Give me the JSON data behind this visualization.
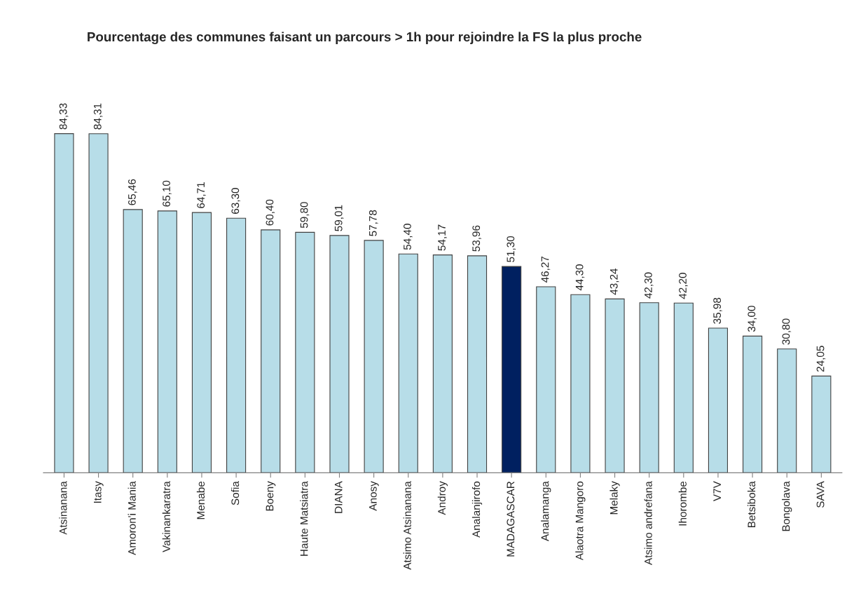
{
  "chart_data": {
    "type": "bar",
    "title": "Pourcentage des communes faisant un parcours > 1h pour rejoindre la FS la plus proche",
    "categories": [
      "Atsinanana",
      "Itasy",
      "Amoron'i Mania",
      "Vakinankaratra",
      "Menabe",
      "Sofia",
      "Boeny",
      "Haute Matsiatra",
      "DIANA",
      "Anosy",
      "Atsimo Atsinanana",
      "Androy",
      "Analanjirofo",
      "MADAGASCAR",
      "Analamanga",
      "Alaotra Mangoro",
      "Melaky",
      "Atsimo andrefana",
      "Ihorombe",
      "V7V",
      "Betsiboka",
      "Bongolava",
      "SAVA"
    ],
    "values": [
      84.33,
      84.31,
      65.46,
      65.1,
      64.71,
      63.3,
      60.4,
      59.8,
      59.01,
      57.78,
      54.4,
      54.17,
      53.96,
      51.3,
      46.27,
      44.3,
      43.24,
      42.3,
      42.2,
      35.98,
      34.0,
      30.8,
      24.05
    ],
    "value_labels": [
      "84,33",
      "84,31",
      "65,46",
      "65,10",
      "64,71",
      "63,30",
      "60,40",
      "59,80",
      "59,01",
      "57,78",
      "54,40",
      "54,17",
      "53,96",
      "51,30",
      "46,27",
      "44,30",
      "43,24",
      "42,30",
      "42,20",
      "35,98",
      "34,00",
      "30,80",
      "24,05"
    ],
    "colors": [
      "#b7dde8",
      "#b7dde8",
      "#b7dde8",
      "#b7dde8",
      "#b7dde8",
      "#b7dde8",
      "#b7dde8",
      "#b7dde8",
      "#b7dde8",
      "#b7dde8",
      "#b7dde8",
      "#b7dde8",
      "#b7dde8",
      "#002060",
      "#b7dde8",
      "#b7dde8",
      "#b7dde8",
      "#b7dde8",
      "#b7dde8",
      "#b7dde8",
      "#b7dde8",
      "#b7dde8",
      "#b7dde8"
    ]
  }
}
